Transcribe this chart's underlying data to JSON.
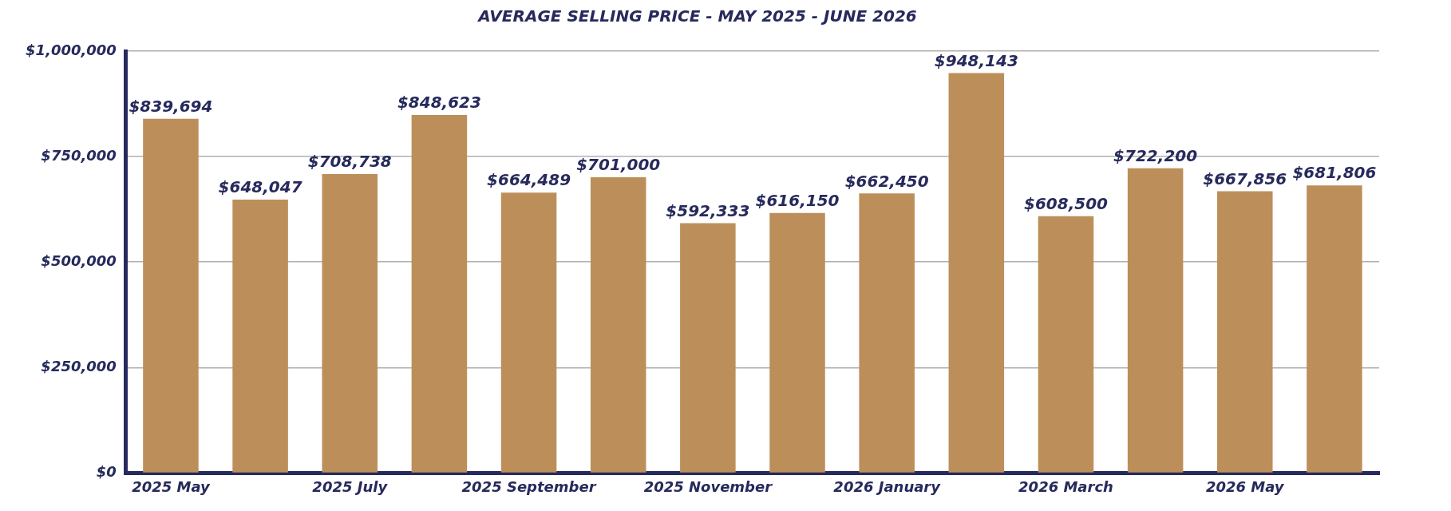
{
  "chart_data": {
    "type": "bar",
    "title": "AVERAGE SELLING PRICE - MAY 2025 - JUNE 2026",
    "categories": [
      "2025 May",
      null,
      "2025 July",
      null,
      "2025 September",
      null,
      "2025 November",
      null,
      "2026 January",
      null,
      "2026 March",
      null,
      "2026 May",
      null
    ],
    "values": [
      839694,
      648047,
      708738,
      848623,
      664489,
      701000,
      592333,
      616150,
      662450,
      948143,
      608500,
      722200,
      667856,
      681806
    ],
    "color": "#bc8f5a",
    "ylim": [
      0,
      1000000
    ],
    "yticks": [
      {
        "value": 0,
        "label": "$0"
      },
      {
        "value": 250000,
        "label": "$250,000"
      },
      {
        "value": 500000,
        "label": "$500,000"
      },
      {
        "value": 750000,
        "label": "$750,000"
      },
      {
        "value": 1000000,
        "label": "$1,000,000"
      }
    ],
    "grid": "y",
    "legend": false,
    "value_labels": [
      "$839,694",
      "$648,047",
      "$708,738",
      "$848,623",
      "$664,489",
      "$701,000",
      "$592,333",
      "$616,150",
      "$662,450",
      "$948,143",
      "$608,500",
      "$722,200",
      "$667,856",
      "$681,806"
    ]
  }
}
